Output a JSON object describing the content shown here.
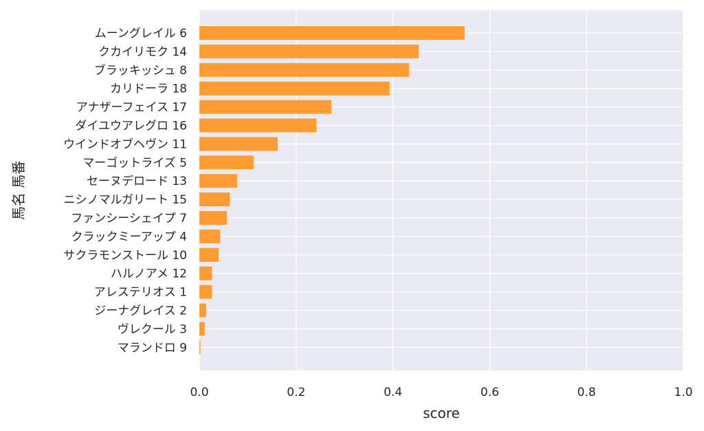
{
  "chart_data": {
    "type": "bar",
    "orientation": "horizontal",
    "title": "",
    "xlabel": "score",
    "ylabel": "馬名 馬番",
    "xlim": [
      0.0,
      1.0
    ],
    "xticks": [
      "0.0",
      "0.2",
      "0.4",
      "0.6",
      "0.8",
      "1.0"
    ],
    "grid": true,
    "bar_color": "#ff9c33",
    "background_color": "#eaeaf2",
    "categories": [
      "ムーングレイル 6",
      "クカイリモク 14",
      "ブラッキッシュ 8",
      "カリドーラ 18",
      "アナザーフェイス 17",
      "ダイユウアレグロ 16",
      "ウインドオブヘヴン 11",
      "マーゴットライズ 5",
      "セーヌデロード 13",
      "ニシノマルガリート 15",
      "ファンシーシェイプ 7",
      "クラックミーアップ 4",
      "サクラモンストール 10",
      "ハルノアメ 12",
      "アレステリオス 1",
      "ジーナグレイス 2",
      "ヴレクール 3",
      "マランドロ 9"
    ],
    "values": [
      0.548,
      0.453,
      0.433,
      0.393,
      0.273,
      0.242,
      0.162,
      0.112,
      0.078,
      0.063,
      0.057,
      0.043,
      0.04,
      0.026,
      0.026,
      0.014,
      0.011,
      0.002
    ]
  }
}
